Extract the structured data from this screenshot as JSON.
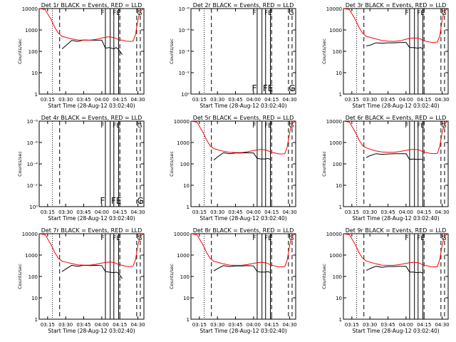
{
  "figure": {
    "xlabel": "Start Time (28-Aug-12 03:02:40)",
    "ylabel": "Counts/sec",
    "x_ticks": [
      "03:15",
      "03:30",
      "03:45",
      "04:00",
      "04:15",
      "04:30"
    ],
    "log_ticks": [
      "1",
      "10",
      "100",
      "1000",
      "10000"
    ],
    "empty_ticks": [
      "10⁰",
      "10⁻²",
      "10⁻⁴",
      "10⁻⁶",
      "10⁻⁸"
    ],
    "flags": [
      "F",
      "FE",
      "G"
    ],
    "colors": {
      "events": "#000000",
      "lld": "#ff0000",
      "axes": "#000000"
    }
  },
  "chart_data": [
    {
      "type": "line",
      "title": "Det 1r BLACK = Events, RED = LLD",
      "has_data": true,
      "yscale": "log",
      "ylim": [
        1,
        10000
      ],
      "x": [
        "03:08",
        "03:13",
        "03:18",
        "03:21",
        "03:24",
        "03:27",
        "03:30",
        "03:35",
        "03:40",
        "03:45",
        "03:50",
        "03:55",
        "04:00",
        "04:03",
        "04:06",
        "04:10",
        "04:12",
        "04:14",
        "04:17",
        "04:20",
        "04:23",
        "04:26",
        "04:28",
        "04:30",
        "04:32",
        "04:35"
      ],
      "series": [
        {
          "name": "Events",
          "values": [
            null,
            null,
            null,
            null,
            null,
            130,
            180,
            320,
            290,
            340,
            330,
            330,
            330,
            140,
            150,
            130,
            150,
            120,
            70,
            null,
            null,
            null,
            null,
            null,
            null,
            null
          ]
        },
        {
          "name": "LLD",
          "values": [
            10000,
            9000,
            3000,
            1300,
            700,
            500,
            450,
            380,
            340,
            330,
            330,
            360,
            420,
            450,
            480,
            440,
            400,
            350,
            330,
            300,
            290,
            300,
            600,
            3000,
            8000,
            10000
          ]
        }
      ]
    },
    {
      "type": "line",
      "title": "Det 2r BLACK = Events, RED = LLD",
      "has_data": false,
      "yscale": "log",
      "ylim": [
        1e-08,
        1
      ],
      "series": []
    },
    {
      "type": "line",
      "title": "Det 3r BLACK = Events, RED = LLD",
      "has_data": true,
      "yscale": "log",
      "ylim": [
        1,
        10000
      ],
      "x": [
        "03:08",
        "03:13",
        "03:18",
        "03:21",
        "03:24",
        "03:27",
        "03:30",
        "03:35",
        "03:40",
        "03:45",
        "03:50",
        "03:55",
        "04:00",
        "04:03",
        "04:06",
        "04:10",
        "04:12",
        "04:14",
        "04:17",
        "04:20",
        "04:23",
        "04:26",
        "04:28",
        "04:30",
        "04:32",
        "04:35"
      ],
      "series": [
        {
          "name": "Events",
          "values": [
            null,
            null,
            null,
            null,
            null,
            180,
            190,
            250,
            240,
            250,
            250,
            260,
            260,
            150,
            150,
            140,
            150,
            130,
            null,
            null,
            null,
            null,
            null,
            null,
            null,
            null
          ]
        },
        {
          "name": "LLD",
          "values": [
            10000,
            9000,
            3000,
            1300,
            700,
            500,
            450,
            380,
            320,
            300,
            290,
            310,
            370,
            400,
            420,
            410,
            380,
            320,
            290,
            270,
            260,
            270,
            500,
            3000,
            8000,
            10000
          ]
        }
      ]
    },
    {
      "type": "line",
      "title": "Det 4r BLACK = Events, RED = LLD",
      "has_data": false,
      "yscale": "log",
      "ylim": [
        1e-08,
        1
      ],
      "series": []
    },
    {
      "type": "line",
      "title": "Det 5r BLACK = Events, RED = LLD",
      "has_data": true,
      "yscale": "log",
      "ylim": [
        1,
        10000
      ],
      "x": [
        "03:08",
        "03:13",
        "03:18",
        "03:21",
        "03:24",
        "03:27",
        "03:30",
        "03:35",
        "03:40",
        "03:45",
        "03:50",
        "03:55",
        "04:00",
        "04:03",
        "04:06",
        "04:10",
        "04:12",
        "04:14",
        "04:17",
        "04:20",
        "04:23",
        "04:26",
        "04:28",
        "04:30",
        "04:32",
        "04:35"
      ],
      "series": [
        {
          "name": "Events",
          "values": [
            null,
            null,
            null,
            null,
            null,
            150,
            210,
            330,
            300,
            320,
            320,
            330,
            320,
            180,
            170,
            170,
            180,
            160,
            null,
            null,
            null,
            null,
            null,
            null,
            null,
            null
          ]
        },
        {
          "name": "LLD",
          "values": [
            10000,
            9000,
            3000,
            1300,
            700,
            520,
            460,
            390,
            350,
            340,
            340,
            370,
            420,
            450,
            470,
            450,
            410,
            360,
            330,
            300,
            290,
            300,
            650,
            3000,
            8000,
            10000
          ]
        }
      ]
    },
    {
      "type": "line",
      "title": "Det 6r BLACK = Events, RED = LLD",
      "has_data": true,
      "yscale": "log",
      "ylim": [
        1,
        10000
      ],
      "x": [
        "03:08",
        "03:13",
        "03:18",
        "03:21",
        "03:24",
        "03:27",
        "03:30",
        "03:35",
        "03:40",
        "03:45",
        "03:50",
        "03:55",
        "04:00",
        "04:03",
        "04:06",
        "04:10",
        "04:12",
        "04:14",
        "04:17",
        "04:20",
        "04:23",
        "04:26",
        "04:28",
        "04:30",
        "04:32",
        "04:35"
      ],
      "series": [
        {
          "name": "Events",
          "values": [
            null,
            null,
            null,
            null,
            null,
            200,
            240,
            300,
            280,
            290,
            300,
            300,
            300,
            160,
            170,
            160,
            170,
            150,
            null,
            null,
            null,
            null,
            null,
            null,
            null,
            null
          ]
        },
        {
          "name": "LLD",
          "values": [
            10000,
            9000,
            3000,
            1300,
            700,
            560,
            490,
            400,
            360,
            350,
            350,
            380,
            430,
            460,
            480,
            460,
            420,
            370,
            340,
            310,
            300,
            310,
            650,
            3000,
            8000,
            10000
          ]
        }
      ]
    },
    {
      "type": "line",
      "title": "Det 7r BLACK = Events, RED = LLD",
      "has_data": true,
      "yscale": "log",
      "ylim": [
        1,
        10000
      ],
      "x": [
        "03:08",
        "03:13",
        "03:18",
        "03:21",
        "03:24",
        "03:27",
        "03:30",
        "03:35",
        "03:40",
        "03:45",
        "03:50",
        "03:55",
        "04:00",
        "04:03",
        "04:06",
        "04:10",
        "04:12",
        "04:14",
        "04:17",
        "04:20",
        "04:23",
        "04:26",
        "04:28",
        "04:30",
        "04:32",
        "04:35"
      ],
      "series": [
        {
          "name": "Events",
          "values": [
            null,
            null,
            null,
            null,
            null,
            170,
            220,
            330,
            300,
            330,
            320,
            330,
            320,
            170,
            160,
            150,
            160,
            140,
            80,
            null,
            null,
            null,
            null,
            null,
            null,
            null
          ]
        },
        {
          "name": "LLD",
          "values": [
            10000,
            9000,
            3000,
            1300,
            700,
            520,
            470,
            400,
            350,
            340,
            340,
            370,
            420,
            450,
            470,
            450,
            410,
            360,
            330,
            300,
            290,
            300,
            620,
            3000,
            8000,
            10000
          ]
        }
      ]
    },
    {
      "type": "line",
      "title": "Det 8r BLACK = Events, RED = LLD",
      "has_data": true,
      "yscale": "log",
      "ylim": [
        1,
        10000
      ],
      "x": [
        "03:08",
        "03:13",
        "03:18",
        "03:21",
        "03:24",
        "03:27",
        "03:30",
        "03:35",
        "03:40",
        "03:45",
        "03:50",
        "03:55",
        "04:00",
        "04:03",
        "04:06",
        "04:10",
        "04:12",
        "04:14",
        "04:17",
        "04:20",
        "04:23",
        "04:26",
        "04:28",
        "04:30",
        "04:32",
        "04:35"
      ],
      "series": [
        {
          "name": "Events",
          "values": [
            null,
            null,
            null,
            null,
            null,
            180,
            230,
            320,
            290,
            310,
            310,
            320,
            310,
            170,
            160,
            160,
            170,
            150,
            null,
            null,
            null,
            null,
            null,
            null,
            null,
            null
          ]
        },
        {
          "name": "LLD",
          "values": [
            10000,
            9000,
            3000,
            1300,
            700,
            510,
            460,
            390,
            340,
            330,
            330,
            360,
            410,
            440,
            460,
            440,
            400,
            350,
            320,
            290,
            280,
            290,
            600,
            3000,
            8000,
            10000
          ]
        }
      ]
    },
    {
      "type": "line",
      "title": "Det 9r BLACK = Events, RED = LLD",
      "has_data": true,
      "yscale": "log",
      "ylim": [
        1,
        10000
      ],
      "x": [
        "03:08",
        "03:13",
        "03:18",
        "03:21",
        "03:24",
        "03:27",
        "03:30",
        "03:35",
        "03:40",
        "03:45",
        "03:50",
        "03:55",
        "04:00",
        "04:03",
        "04:06",
        "04:10",
        "04:12",
        "04:14",
        "04:17",
        "04:20",
        "04:23",
        "04:26",
        "04:28",
        "04:30",
        "04:32",
        "04:35"
      ],
      "series": [
        {
          "name": "Events",
          "values": [
            null,
            null,
            null,
            null,
            null,
            190,
            230,
            300,
            270,
            290,
            290,
            300,
            300,
            160,
            160,
            150,
            160,
            140,
            null,
            null,
            null,
            null,
            null,
            null,
            null,
            null
          ]
        },
        {
          "name": "LLD",
          "values": [
            10000,
            9000,
            3000,
            1300,
            700,
            530,
            470,
            390,
            340,
            330,
            330,
            360,
            410,
            440,
            460,
            440,
            400,
            350,
            320,
            290,
            280,
            290,
            620,
            3000,
            8000,
            10000
          ]
        }
      ]
    }
  ]
}
